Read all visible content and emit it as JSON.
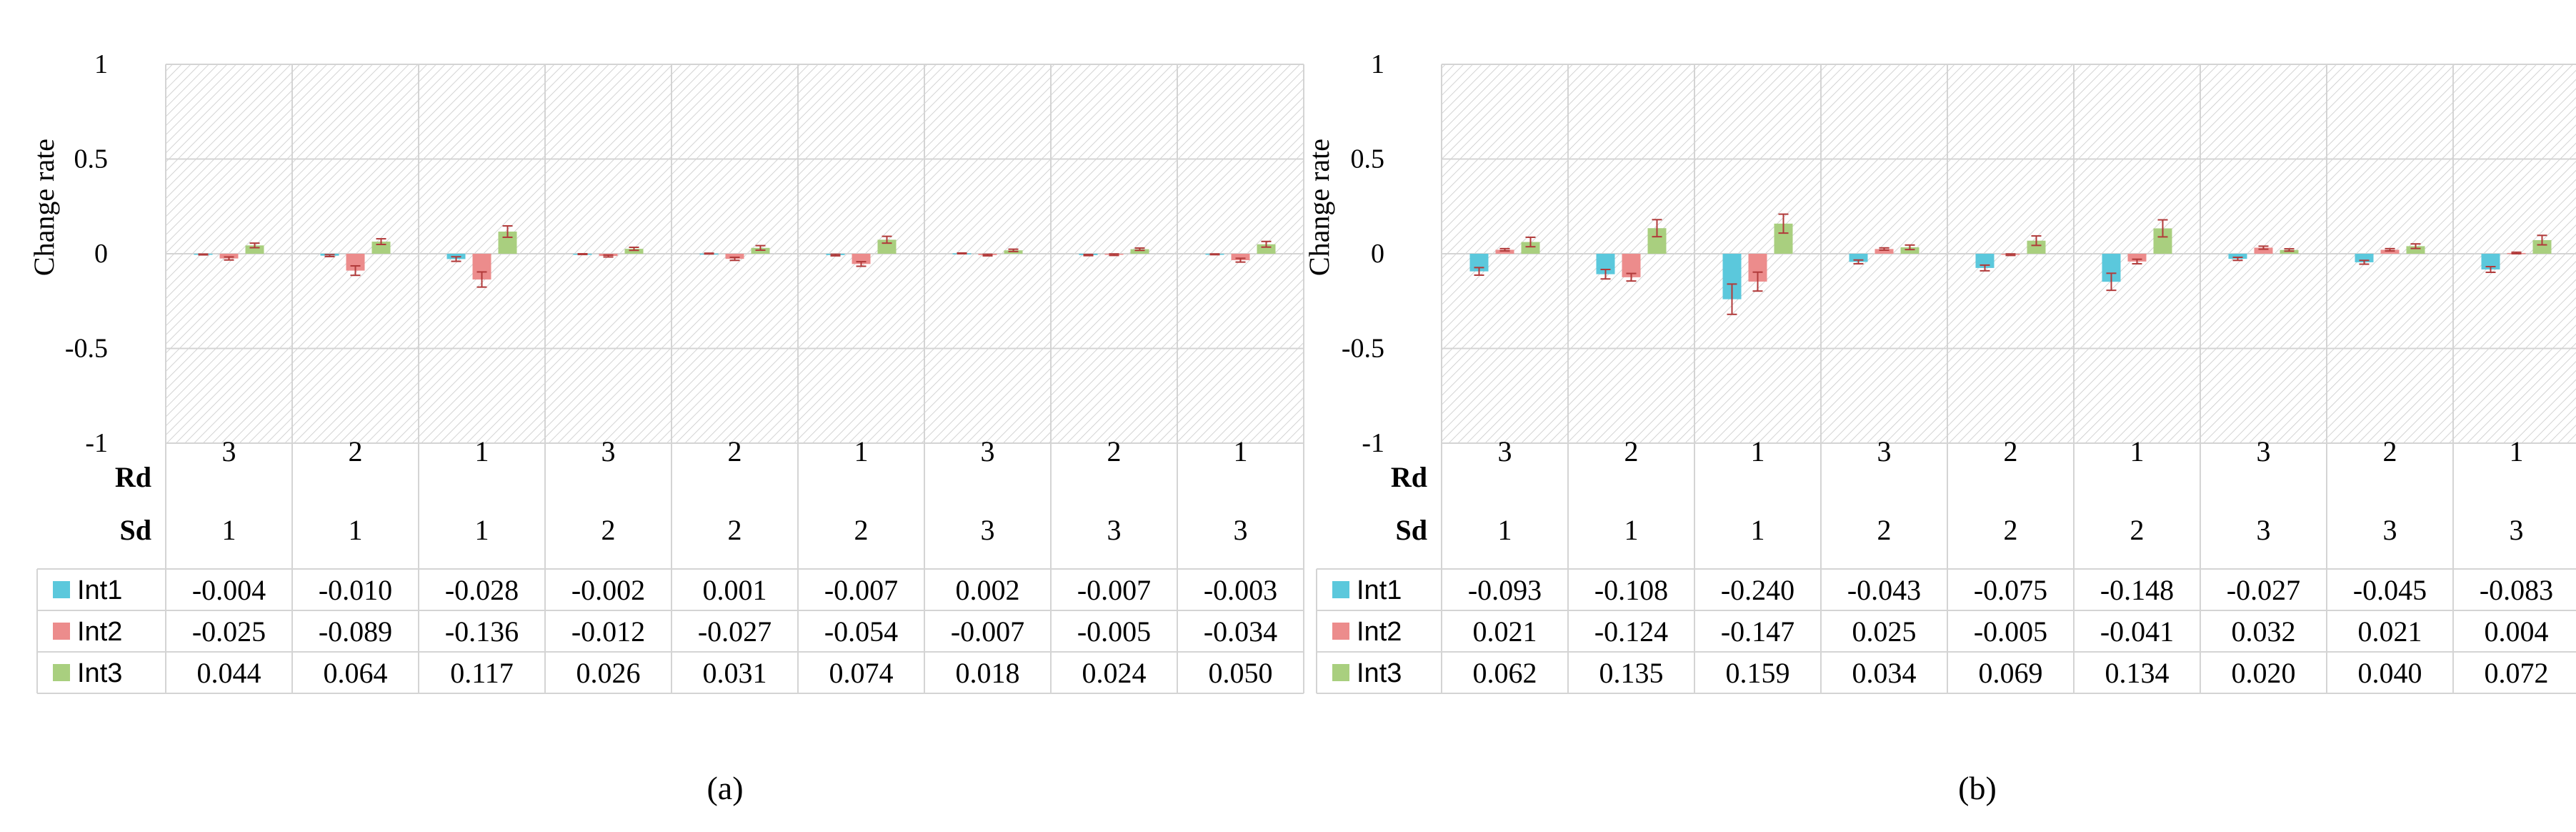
{
  "chart_data": [
    {
      "type": "bar",
      "caption": "(a)",
      "ylabel": "Change rate",
      "ylim": [
        -1,
        1
      ],
      "yticks": [
        "1",
        "0.5",
        "0",
        "-0.5",
        "-1"
      ],
      "grid": true,
      "hatched_background": true,
      "row_labels": [
        "Rd",
        "Sd"
      ],
      "categories": [
        {
          "rd": "3",
          "sd": "1"
        },
        {
          "rd": "2",
          "sd": "1"
        },
        {
          "rd": "1",
          "sd": "1"
        },
        {
          "rd": "3",
          "sd": "2"
        },
        {
          "rd": "2",
          "sd": "2"
        },
        {
          "rd": "1",
          "sd": "2"
        },
        {
          "rd": "3",
          "sd": "3"
        },
        {
          "rd": "2",
          "sd": "3"
        },
        {
          "rd": "1",
          "sd": "3"
        }
      ],
      "series": [
        {
          "name": "Int1",
          "color": "#5bc8dc",
          "values": [
            -0.004,
            -0.01,
            -0.028,
            -0.002,
            0.001,
            -0.007,
            0.002,
            -0.007,
            -0.003
          ],
          "labels": [
            "-0.004",
            "-0.010",
            "-0.028",
            "-0.002",
            "0.001",
            "-0.007",
            "0.002",
            "-0.007",
            "-0.003"
          ]
        },
        {
          "name": "Int2",
          "color": "#ec8c8c",
          "values": [
            -0.025,
            -0.089,
            -0.136,
            -0.012,
            -0.027,
            -0.054,
            -0.007,
            -0.005,
            -0.034
          ],
          "labels": [
            "-0.025",
            "-0.089",
            "-0.136",
            "-0.012",
            "-0.027",
            "-0.054",
            "-0.007",
            "-0.005",
            "-0.034"
          ]
        },
        {
          "name": "Int3",
          "color": "#a9cf7f",
          "values": [
            0.044,
            0.064,
            0.117,
            0.026,
            0.031,
            0.074,
            0.018,
            0.024,
            0.05
          ],
          "labels": [
            "0.044",
            "0.064",
            "0.117",
            "0.026",
            "0.031",
            "0.074",
            "0.018",
            "0.024",
            "0.050"
          ]
        }
      ],
      "errors": [
        [
          0.002,
          0.005,
          0.012,
          0.002,
          0.002,
          0.004,
          0.002,
          0.003,
          0.002
        ],
        [
          0.008,
          0.025,
          0.04,
          0.005,
          0.008,
          0.012,
          0.004,
          0.004,
          0.01
        ],
        [
          0.012,
          0.015,
          0.03,
          0.008,
          0.012,
          0.018,
          0.006,
          0.006,
          0.015
        ]
      ]
    },
    {
      "type": "bar",
      "caption": "(b)",
      "ylabel": "Change rate",
      "ylim": [
        -1,
        1
      ],
      "yticks": [
        "1",
        "0.5",
        "0",
        "-0.5",
        "-1"
      ],
      "grid": true,
      "hatched_background": true,
      "row_labels": [
        "Rd",
        "Sd"
      ],
      "categories": [
        {
          "rd": "3",
          "sd": "1"
        },
        {
          "rd": "2",
          "sd": "1"
        },
        {
          "rd": "1",
          "sd": "1"
        },
        {
          "rd": "3",
          "sd": "2"
        },
        {
          "rd": "2",
          "sd": "2"
        },
        {
          "rd": "1",
          "sd": "2"
        },
        {
          "rd": "3",
          "sd": "3"
        },
        {
          "rd": "2",
          "sd": "3"
        },
        {
          "rd": "1",
          "sd": "3"
        }
      ],
      "series": [
        {
          "name": "Int1",
          "color": "#5bc8dc",
          "values": [
            -0.093,
            -0.108,
            -0.24,
            -0.043,
            -0.075,
            -0.148,
            -0.027,
            -0.045,
            -0.083
          ],
          "labels": [
            "-0.093",
            "-0.108",
            "-0.240",
            "-0.043",
            "-0.075",
            "-0.148",
            "-0.027",
            "-0.045",
            "-0.083"
          ]
        },
        {
          "name": "Int2",
          "color": "#ec8c8c",
          "values": [
            0.021,
            -0.124,
            -0.147,
            0.025,
            -0.005,
            -0.041,
            0.032,
            0.021,
            0.004
          ],
          "labels": [
            "0.021",
            "-0.124",
            "-0.147",
            "0.025",
            "-0.005",
            "-0.041",
            "0.032",
            "0.021",
            "0.004"
          ]
        },
        {
          "name": "Int3",
          "color": "#a9cf7f",
          "values": [
            0.062,
            0.135,
            0.159,
            0.034,
            0.069,
            0.134,
            0.02,
            0.04,
            0.072
          ],
          "labels": [
            "0.062",
            "0.135",
            "0.159",
            "0.034",
            "0.069",
            "0.134",
            "0.020",
            "0.040",
            "0.072"
          ]
        }
      ],
      "errors": [
        [
          0.02,
          0.025,
          0.08,
          0.01,
          0.015,
          0.045,
          0.008,
          0.01,
          0.015
        ],
        [
          0.006,
          0.02,
          0.05,
          0.006,
          0.004,
          0.012,
          0.008,
          0.006,
          0.004
        ],
        [
          0.025,
          0.045,
          0.05,
          0.012,
          0.025,
          0.045,
          0.006,
          0.012,
          0.025
        ]
      ]
    }
  ]
}
